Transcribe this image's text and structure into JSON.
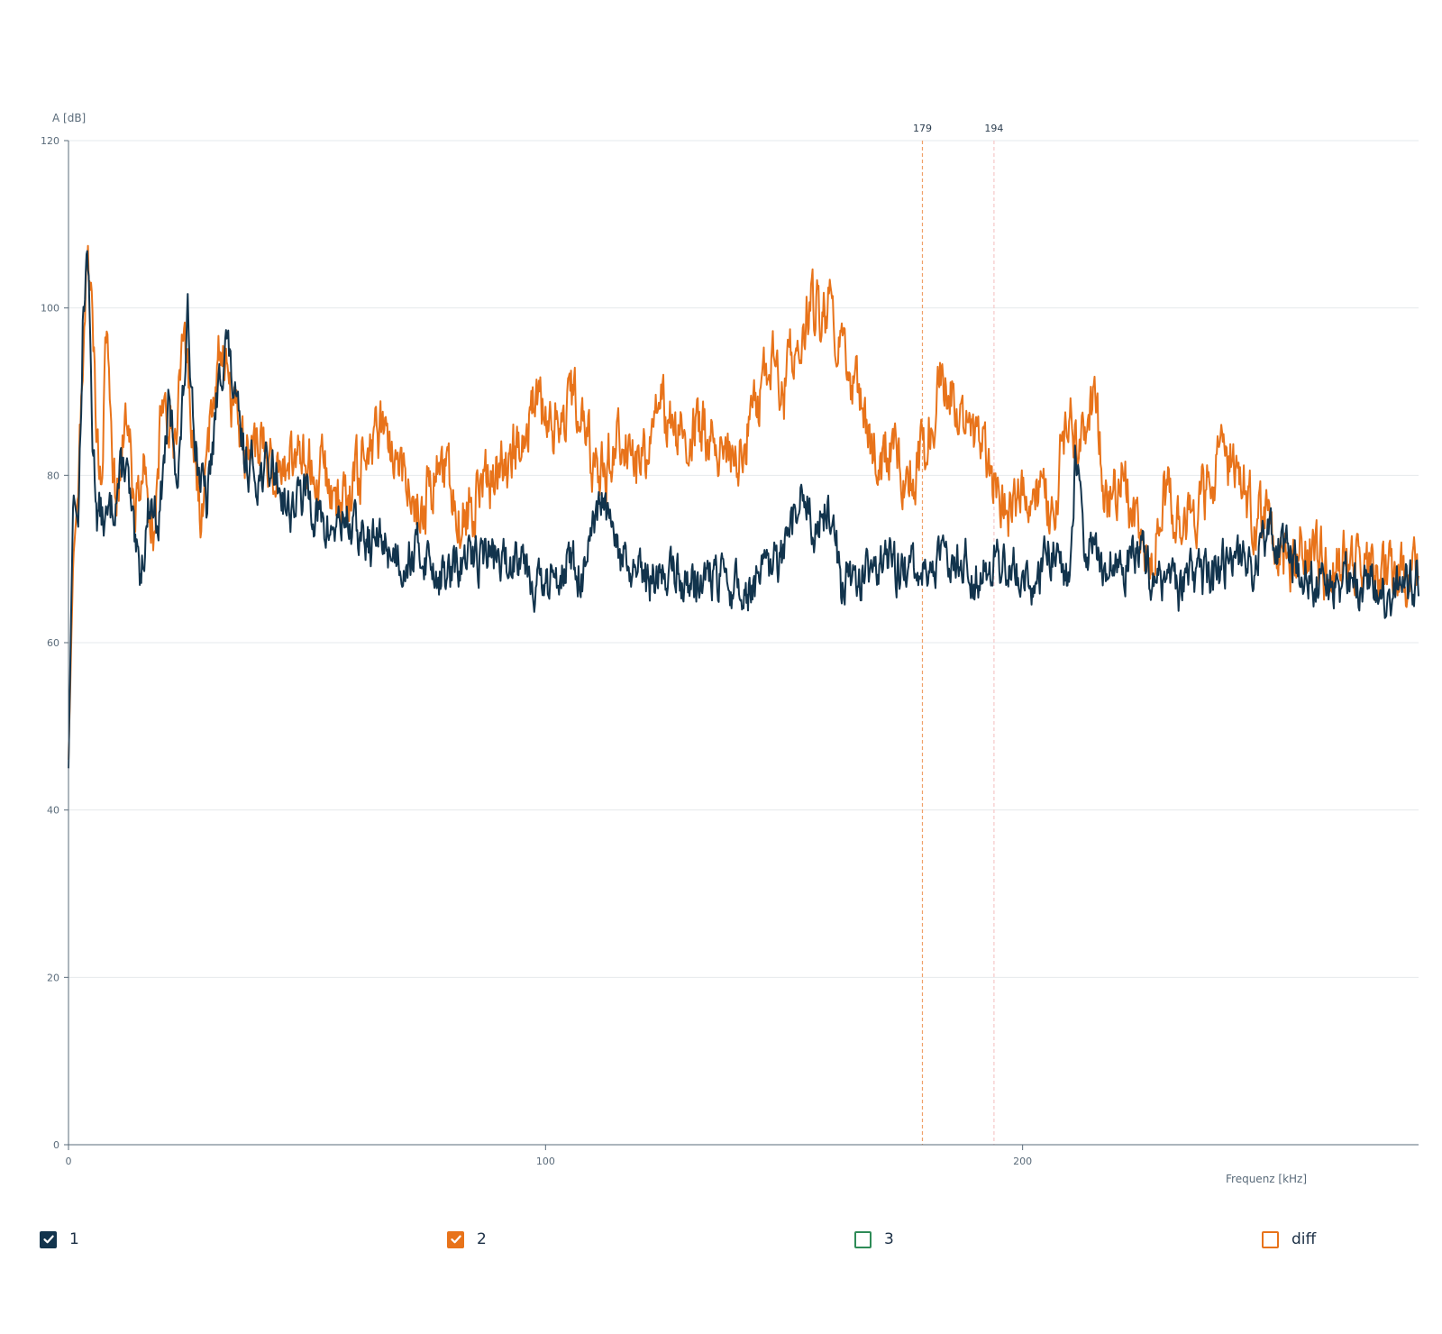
{
  "chart_data": {
    "type": "line",
    "xlabel": "Frequenz [kHz]",
    "ylabel": "A [dB]",
    "xlim": [
      0,
      283
    ],
    "ylim": [
      0,
      120
    ],
    "xticks": [
      0,
      100,
      200
    ],
    "yticks": [
      0,
      20,
      40,
      60,
      80,
      100,
      120
    ],
    "grid": "horizontal",
    "markers": [
      {
        "x": 179,
        "label": "179",
        "color": "#f0a068",
        "style": "dashed"
      },
      {
        "x": 194,
        "label": "194",
        "color": "#f6c8c8",
        "style": "dashed"
      }
    ],
    "series": [
      {
        "name": "1",
        "color": "#12344d",
        "x": [
          0,
          1,
          2,
          3,
          4,
          5,
          6,
          8,
          10,
          12,
          14,
          15,
          17,
          19,
          21,
          23,
          25,
          27,
          29,
          31,
          33,
          35,
          37,
          40,
          43,
          46,
          50,
          54,
          58,
          62,
          66,
          70,
          74,
          78,
          80,
          84,
          88,
          92,
          95,
          97,
          100,
          104,
          108,
          112,
          114,
          118,
          122,
          126,
          130,
          134,
          138,
          142,
          146,
          150,
          154,
          156,
          160,
          162,
          166,
          170,
          174,
          178,
          182,
          186,
          190,
          194,
          198,
          202,
          206,
          210,
          211,
          213,
          216,
          220,
          224,
          228,
          232,
          236,
          240,
          244,
          248,
          252,
          256,
          260,
          264,
          268,
          272,
          276,
          280,
          283
        ],
        "values": [
          45,
          78,
          74,
          98,
          108,
          85,
          76,
          74,
          78,
          82,
          70,
          68,
          77,
          75,
          88,
          80,
          98,
          82,
          76,
          88,
          97,
          88,
          82,
          80,
          81,
          76,
          78,
          73,
          75,
          72,
          72,
          70,
          71,
          68,
          68,
          70,
          71,
          69,
          72,
          68,
          66,
          70,
          68,
          77,
          72,
          68,
          67,
          69,
          67,
          68,
          67,
          66,
          68,
          70,
          78,
          74,
          76,
          67,
          68,
          70,
          69,
          68,
          69,
          71,
          68,
          70,
          69,
          67,
          71,
          68,
          82,
          72,
          70,
          69,
          71,
          67,
          66,
          68,
          67,
          71,
          69,
          73,
          70,
          68,
          67,
          68,
          67,
          66,
          67,
          68
        ]
      },
      {
        "name": "2",
        "color": "#e8731a",
        "x": [
          0,
          1,
          2,
          3,
          4,
          5,
          6,
          7,
          8,
          10,
          12,
          14,
          16,
          18,
          20,
          22,
          24,
          26,
          28,
          30,
          32,
          34,
          36,
          38,
          40,
          43,
          46,
          50,
          54,
          58,
          62,
          66,
          70,
          74,
          78,
          82,
          86,
          90,
          92,
          95,
          98,
          102,
          106,
          110,
          112,
          116,
          120,
          124,
          128,
          132,
          136,
          140,
          144,
          148,
          150,
          152,
          155,
          158,
          160,
          162,
          164,
          166,
          168,
          170,
          173,
          176,
          179,
          182,
          185,
          188,
          191,
          194,
          197,
          200,
          203,
          206,
          209,
          212,
          215,
          218,
          221,
          224,
          227,
          230,
          233,
          236,
          240,
          244,
          248,
          252,
          256,
          260,
          264,
          268,
          272,
          276,
          280,
          283
        ],
        "values": [
          46,
          70,
          78,
          92,
          108,
          98,
          84,
          80,
          97,
          76,
          88,
          76,
          82,
          74,
          92,
          84,
          96,
          84,
          75,
          88,
          97,
          90,
          86,
          82,
          84,
          80,
          83,
          81,
          80,
          76,
          82,
          86,
          80,
          76,
          82,
          74,
          78,
          80,
          82,
          84,
          90,
          86,
          90,
          82,
          80,
          86,
          80,
          88,
          84,
          86,
          84,
          82,
          88,
          94,
          90,
          96,
          100,
          100,
          99,
          97,
          92,
          88,
          84,
          82,
          84,
          80,
          82,
          90,
          91,
          86,
          84,
          80,
          76,
          80,
          78,
          75,
          86,
          84,
          88,
          76,
          80,
          72,
          70,
          78,
          74,
          76,
          80,
          82,
          76,
          74,
          70,
          72,
          68,
          70,
          68,
          68,
          67,
          70
        ]
      },
      {
        "name": "3",
        "color": "#2e8b57",
        "x": [],
        "values": []
      },
      {
        "name": "diff",
        "color": "#e8731a",
        "x": [],
        "values": []
      }
    ]
  },
  "legend": [
    {
      "id": "s1",
      "label": "1",
      "checked": true,
      "color": "#12344d"
    },
    {
      "id": "s2",
      "label": "2",
      "checked": true,
      "color": "#e8731a"
    },
    {
      "id": "s3",
      "label": "3",
      "checked": false,
      "color": "#2e8b57"
    },
    {
      "id": "diff",
      "label": "diff",
      "checked": false,
      "color": "#e8731a"
    }
  ]
}
